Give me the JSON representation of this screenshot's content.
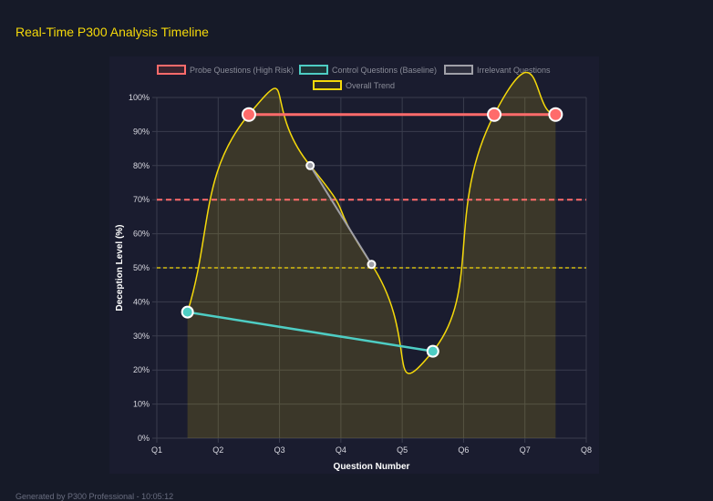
{
  "title": "Real-Time P300 Analysis Timeline",
  "footer": "Generated by P300 Professional - 10:05:12",
  "chart_data": {
    "type": "line",
    "xlabel": "Question Number",
    "ylabel": "Deception Level (%)",
    "x_ticks": [
      "Q1",
      "Q2",
      "Q3",
      "Q4",
      "Q5",
      "Q6",
      "Q7",
      "Q8"
    ],
    "y_ticks": [
      "0%",
      "10%",
      "20%",
      "30%",
      "40%",
      "50%",
      "60%",
      "70%",
      "80%",
      "90%",
      "100%"
    ],
    "ylim": [
      0,
      100
    ],
    "grid": true,
    "legend_position": "top",
    "series": [
      {
        "name": "Probe Questions (High Risk)",
        "color": "#ff6b6b",
        "points": [
          {
            "x": 1.5,
            "y": 95
          },
          {
            "x": 5.5,
            "y": 95
          },
          {
            "x": 6.5,
            "y": 95
          }
        ]
      },
      {
        "name": "Control Questions (Baseline)",
        "color": "#4ecdc4",
        "points": [
          {
            "x": 0.5,
            "y": 37
          },
          {
            "x": 4.5,
            "y": 25.5
          }
        ]
      },
      {
        "name": "Irrelevant Questions",
        "color": "#a0a0a8",
        "points": [
          {
            "x": 2.5,
            "y": 80
          },
          {
            "x": 3.5,
            "y": 51
          }
        ]
      },
      {
        "name": "Overall Trend",
        "color": "#f5d90a",
        "points": [
          {
            "x": 0.5,
            "y": 37
          },
          {
            "x": 1.5,
            "y": 95
          },
          {
            "x": 2.5,
            "y": 80
          },
          {
            "x": 3.5,
            "y": 51
          },
          {
            "x": 4.5,
            "y": 25.5
          },
          {
            "x": 5.5,
            "y": 95
          },
          {
            "x": 6.5,
            "y": 95
          }
        ]
      }
    ],
    "thresholds": [
      {
        "y": 70,
        "color": "#ff6b6b"
      },
      {
        "y": 50,
        "color": "#f5d90a"
      }
    ]
  }
}
